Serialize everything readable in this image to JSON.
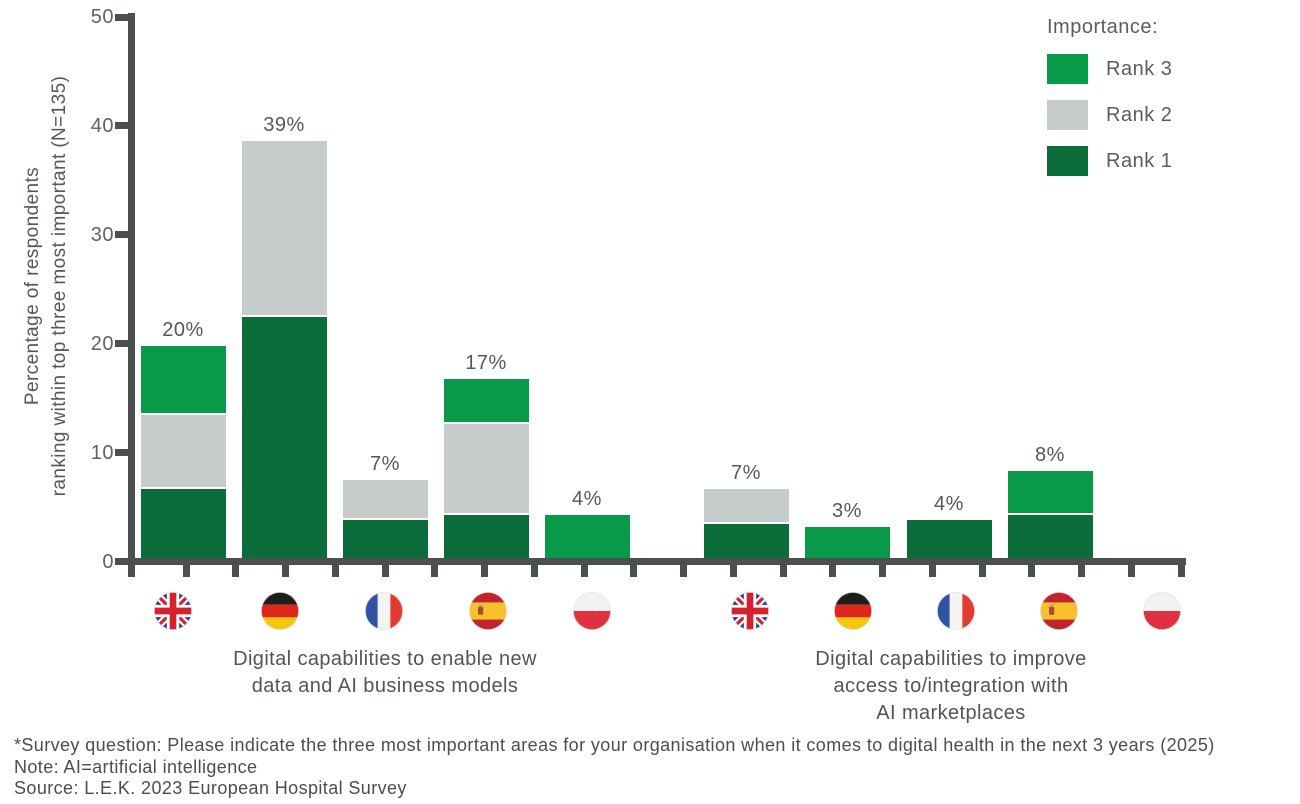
{
  "page": {
    "background": "#ffffff"
  },
  "chart_data": {
    "type": "bar",
    "subtype": "stacked-bar",
    "title": "",
    "ylabel": "Percentage of respondents\nranking within top three most important (N=135)",
    "xlabel": "",
    "ylim": [
      0,
      50
    ],
    "yticks": [
      0,
      10,
      20,
      30,
      40,
      50
    ],
    "grid": false,
    "legend_position": "top-right",
    "legend": {
      "title": "Importance:",
      "entries": [
        {
          "key": "rank3",
          "label": "Rank 3",
          "color": "#099A49"
        },
        {
          "key": "rank2",
          "label": "Rank 2",
          "color": "#C6CCCB"
        },
        {
          "key": "rank1",
          "label": "Rank 1",
          "color": "#0B6E3A"
        }
      ]
    },
    "segment_order_bottom_to_top": [
      "rank1",
      "rank2",
      "rank3"
    ],
    "groups": [
      {
        "label": "Digital capabilities to enable new\ndata and AI business models",
        "bars": [
          {
            "country": "United Kingdom",
            "flag": "uk",
            "value_label": "20%",
            "total": 19.6,
            "segments": {
              "rank1": 6.4,
              "rank2": 6.8,
              "rank3": 6.4
            }
          },
          {
            "country": "Germany",
            "flag": "de",
            "value_label": "39%",
            "total": 38.5,
            "segments": {
              "rank1": 22.3,
              "rank2": 16.2,
              "rank3": 0
            }
          },
          {
            "country": "France",
            "flag": "fr",
            "value_label": "7%",
            "total": 7.2,
            "segments": {
              "rank1": 3.5,
              "rank2": 3.7,
              "rank3": 0
            }
          },
          {
            "country": "Spain",
            "flag": "es",
            "value_label": "17%",
            "total": 16.5,
            "segments": {
              "rank1": 4.0,
              "rank2": 8.4,
              "rank3": 4.1
            }
          },
          {
            "country": "Poland",
            "flag": "pl",
            "value_label": "4%",
            "total": 4.0,
            "segments": {
              "rank1": 0,
              "rank2": 0,
              "rank3": 4.0
            }
          }
        ]
      },
      {
        "label": "Digital capabilities to improve\naccess to/integration with\nAI marketplaces",
        "bars": [
          {
            "country": "United Kingdom",
            "flag": "uk",
            "value_label": "7%",
            "total": 6.4,
            "segments": {
              "rank1": 3.1,
              "rank2": 3.3,
              "rank3": 0
            }
          },
          {
            "country": "Germany",
            "flag": "de",
            "value_label": "3%",
            "total": 2.9,
            "segments": {
              "rank1": 0,
              "rank2": 0,
              "rank3": 2.9
            }
          },
          {
            "country": "France",
            "flag": "fr",
            "value_label": "4%",
            "total": 3.5,
            "segments": {
              "rank1": 3.5,
              "rank2": 0,
              "rank3": 0
            }
          },
          {
            "country": "Spain",
            "flag": "es",
            "value_label": "8%",
            "total": 8.0,
            "segments": {
              "rank1": 4.0,
              "rank2": 0,
              "rank3": 4.0
            }
          },
          {
            "country": "Poland",
            "flag": "pl",
            "value_label": "",
            "total": 0,
            "segments": {
              "rank1": 0,
              "rank2": 0,
              "rank3": 0
            }
          }
        ]
      }
    ],
    "colors": {
      "axis": "#4B4F4D",
      "tick_label": "#5F6361",
      "value_label": "#55585A",
      "segment_separator": "#FFFFFF"
    }
  },
  "footer": {
    "lines": [
      "*Survey question: Please indicate the three most important areas for your organisation when it comes to digital health in the next 3 years (2025)",
      "Note: AI=artificial intelligence",
      "Source: L.E.K. 2023 European Hospital Survey"
    ]
  }
}
